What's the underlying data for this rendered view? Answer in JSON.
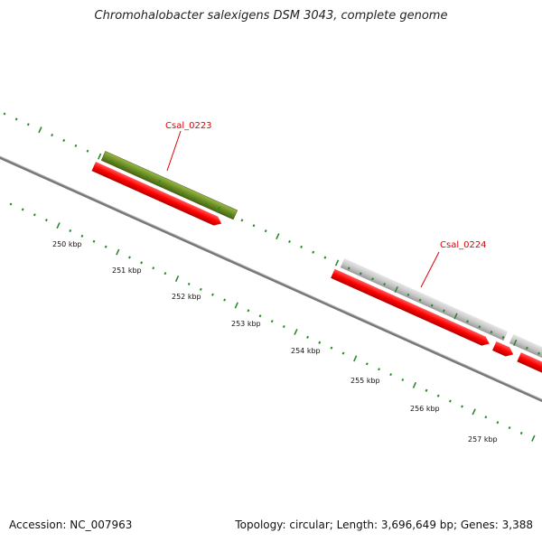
{
  "header": {
    "title": "Chromohalobacter salexigens DSM 3043, complete genome"
  },
  "footer": {
    "accession": "Accession: NC_007963",
    "summary": "Topology: circular; Length: 3,696,649 bp; Genes: 3,388"
  },
  "scale": {
    "ticks": [
      "250 kbp",
      "251 kbp",
      "252 kbp",
      "253 kbp",
      "254 kbp",
      "255 kbp",
      "256 kbp",
      "257 kbp"
    ]
  },
  "genes": {
    "labels": [
      "Csal_0223",
      "Csal_0224"
    ]
  },
  "colors": {
    "backbone": "#777777",
    "tick_green": "#2a8a2a",
    "gene_red": "#ff0000",
    "gene_olive": "#6b8e23",
    "gene_grey": "#c8c8c8",
    "gene_blue": "#1010ee",
    "gene_navy": "#3c3c8c",
    "label_red": "#e00000"
  }
}
